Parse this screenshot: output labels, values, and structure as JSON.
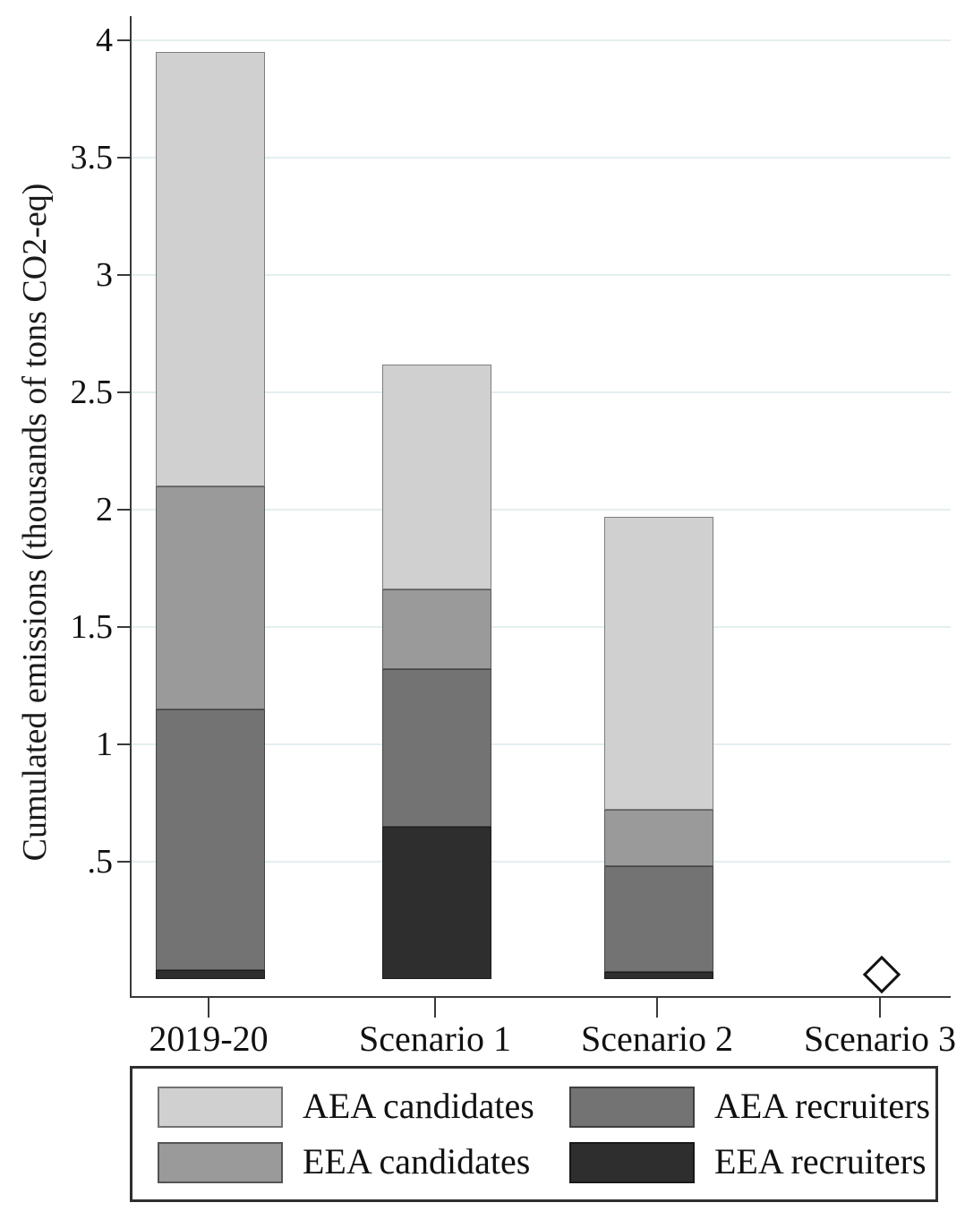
{
  "chart_data": {
    "type": "bar",
    "stacked": true,
    "title": "",
    "categories": [
      "2019-20",
      "Scenario 1",
      "Scenario 2",
      "Scenario 3"
    ],
    "series": [
      {
        "name": "EEA recruiters",
        "color": "#2e2e2e",
        "values": [
          0.04,
          0.65,
          0.03,
          0
        ]
      },
      {
        "name": "AEA recruiters",
        "color": "#737373",
        "values": [
          1.11,
          0.67,
          0.45,
          0
        ]
      },
      {
        "name": "EEA candidates",
        "color": "#9a9a9a",
        "values": [
          0.95,
          0.34,
          0.24,
          0
        ]
      },
      {
        "name": "AEA candidates",
        "color": "#d0d0d0",
        "values": [
          1.85,
          0.96,
          1.25,
          0
        ]
      }
    ],
    "totals": [
      3.95,
      2.62,
      1.97,
      0.02
    ],
    "marker": {
      "category": "Scenario 3",
      "category_index": 3,
      "value": 0.02,
      "shape": "hollow-diamond"
    },
    "ylabel": "Cumulated emissions (thousands of tons CO2-eq)",
    "xlabel": "",
    "yticks": [
      0.5,
      1,
      1.5,
      2,
      2.5,
      3,
      3.5,
      4
    ],
    "ytick_labels": [
      ".5",
      "1",
      "1.5",
      "2",
      "2.5",
      "3",
      "3.5",
      "4"
    ],
    "ylim": [
      0,
      4.17
    ],
    "grid": true,
    "legend_position": "bottom",
    "legend": [
      {
        "label": "AEA candidates",
        "color": "#d0d0d0",
        "col": 0,
        "row": 0
      },
      {
        "label": "EEA candidates",
        "color": "#9a9a9a",
        "col": 0,
        "row": 1
      },
      {
        "label": "AEA recruiters",
        "color": "#737373",
        "col": 1,
        "row": 0
      },
      {
        "label": "EEA recruiters",
        "color": "#2e2e2e",
        "col": 1,
        "row": 1
      }
    ],
    "colors": {
      "axis": "#3a3a3a",
      "grid": "#e3eff0",
      "bar_border": "#4a4a4a"
    }
  }
}
